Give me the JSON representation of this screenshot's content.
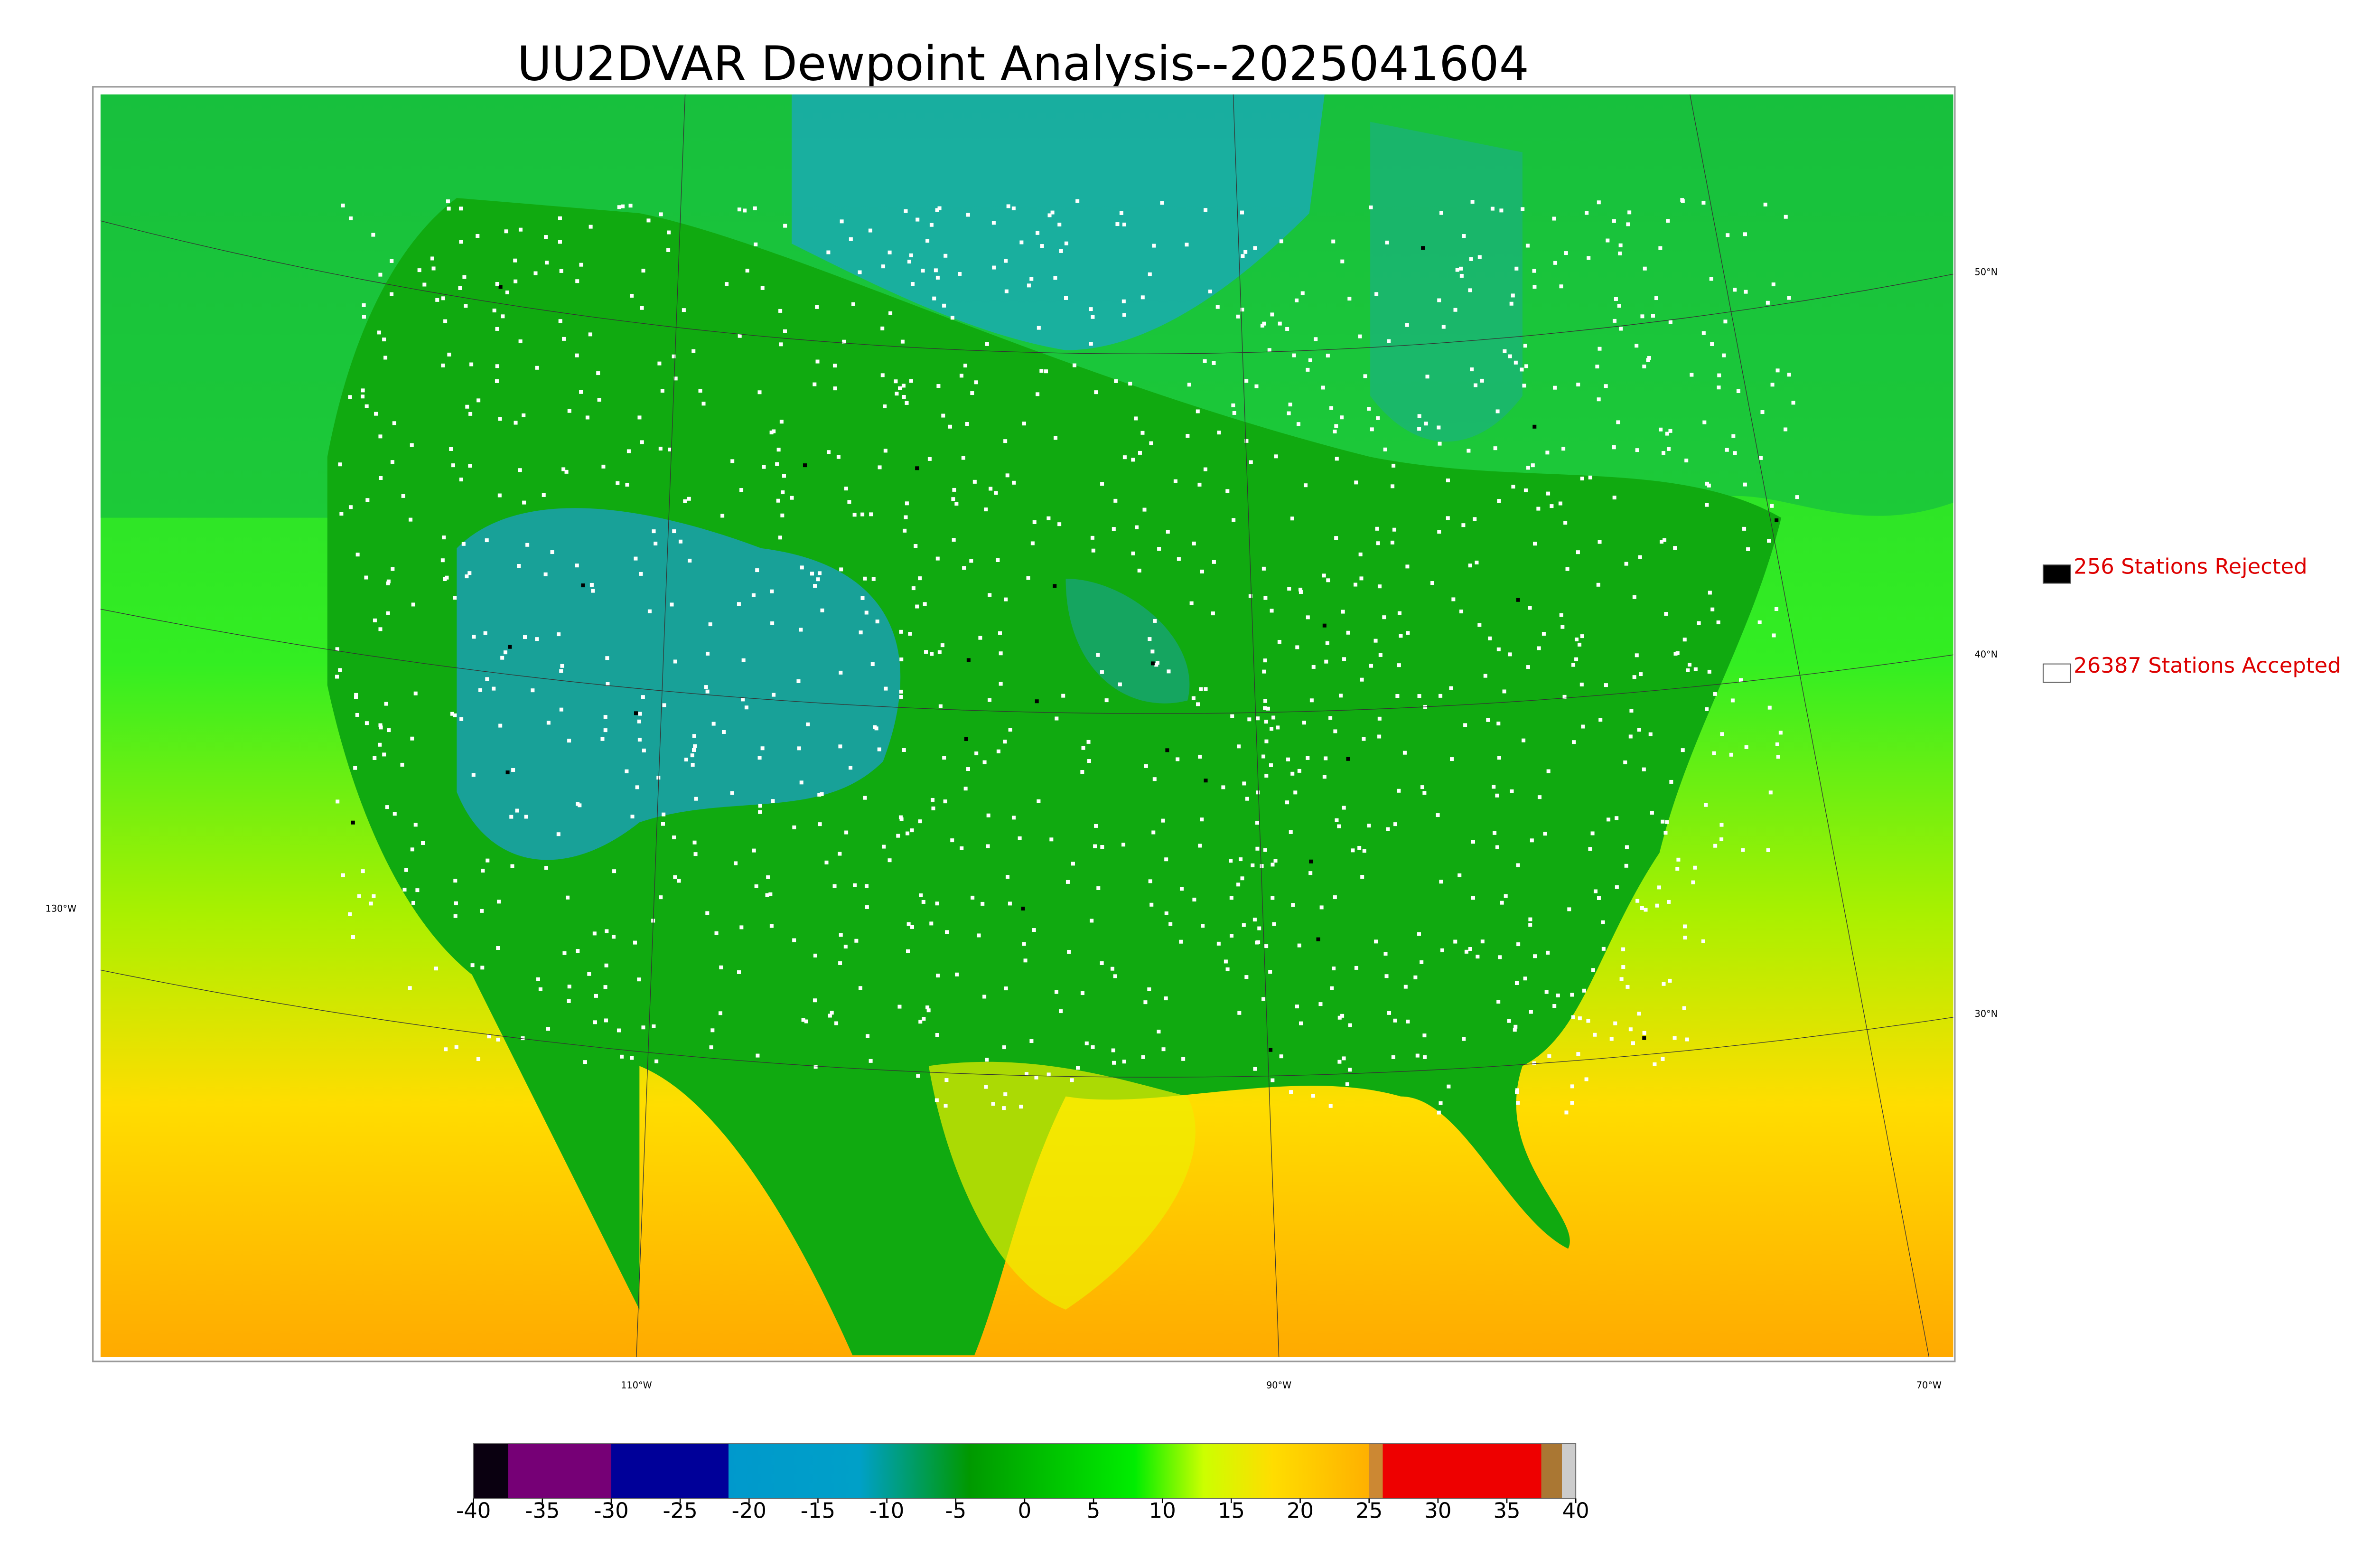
{
  "title": "UU2DVAR Dewpoint Analysis--2025041604",
  "legend": [
    {
      "label": "256 Stations Rejected",
      "color": "#000000"
    },
    {
      "label": "26387 Stations Accepted",
      "color": "#ffffff"
    }
  ],
  "graticule_labels": [
    "50°N",
    "40°N",
    "30°N",
    "130°W",
    "110°W",
    "90°W",
    "70°W"
  ],
  "colorbar": {
    "lim": [
      -40,
      40
    ],
    "ticks": [
      -40,
      -35,
      -30,
      -25,
      -20,
      -15,
      -10,
      -5,
      0,
      5,
      10,
      15,
      20,
      25,
      30,
      35,
      40
    ],
    "stops": [
      {
        "value": -40,
        "color": "#0a0010"
      },
      {
        "value": -37.5,
        "color": "#0a0010"
      },
      {
        "value": -37.5,
        "color": "#760076"
      },
      {
        "value": -30,
        "color": "#760076"
      },
      {
        "value": -30,
        "color": "#000099"
      },
      {
        "value": -21.5,
        "color": "#000099"
      },
      {
        "value": -21.5,
        "color": "#0099cc"
      },
      {
        "value": -12,
        "color": "#00a0c8"
      },
      {
        "value": -4,
        "color": "#009900"
      },
      {
        "value": 8,
        "color": "#00ee00"
      },
      {
        "value": 13,
        "color": "#ccff00"
      },
      {
        "value": 18,
        "color": "#ffdd00"
      },
      {
        "value": 25,
        "color": "#ffb000"
      },
      {
        "value": 25,
        "color": "#cc8833"
      },
      {
        "value": 26,
        "color": "#cc8833"
      },
      {
        "value": 26,
        "color": "#ee0000"
      },
      {
        "value": 37.5,
        "color": "#ee0000"
      },
      {
        "value": 37.5,
        "color": "#aa7733"
      },
      {
        "value": 39,
        "color": "#aa7733"
      },
      {
        "value": 39,
        "color": "#cccccc"
      },
      {
        "value": 40,
        "color": "#cccccc"
      }
    ]
  }
}
